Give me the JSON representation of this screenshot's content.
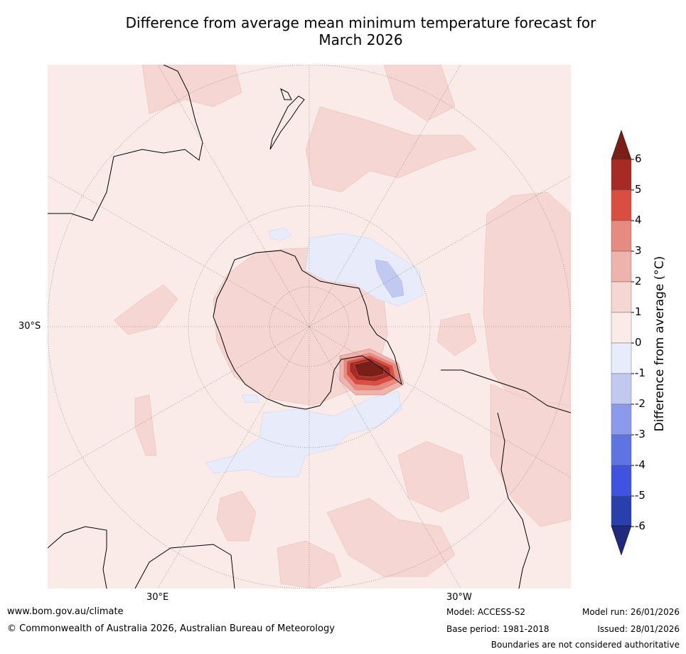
{
  "title_line1": "Difference from average mean minimum temperature forecast for",
  "title_line2": "March 2026",
  "map": {
    "projection": "south-polar-stereographic",
    "lat_labels": [
      "30°S"
    ],
    "lon_labels": [
      "30°E",
      "30°W"
    ],
    "background_color": "#fbebe8"
  },
  "colorbar": {
    "title": "Difference from average (",
    "title_unit": "°C)",
    "ticks": [
      "6",
      "5",
      "4",
      "3",
      "2",
      "1",
      "0",
      "-1",
      "-2",
      "-3",
      "-4",
      "-5",
      "-6"
    ],
    "colors": [
      "#a82a24",
      "#d94e40",
      "#e78a7f",
      "#eeb3aa",
      "#f5d6d3",
      "#fbebe8",
      "#e7ebfa",
      "#c1c9f1",
      "#8b9aeb",
      "#5f73e2",
      "#3f52e0",
      "#293fab"
    ],
    "over_color": "#7a1e18",
    "under_color": "#1f2a7d"
  },
  "footer": {
    "website": "www.bom.gov.au/climate",
    "copyright": "© Commonwealth of Australia 2026, Australian Bureau of Meteorology",
    "model": "Model: ACCESS-S2",
    "base_period": "Base period: 1981-2018",
    "model_run": "Model run: 26/01/2026",
    "issued": "Issued: 28/01/2026",
    "disclaimer": "Boundaries are not considered authoritative"
  }
}
